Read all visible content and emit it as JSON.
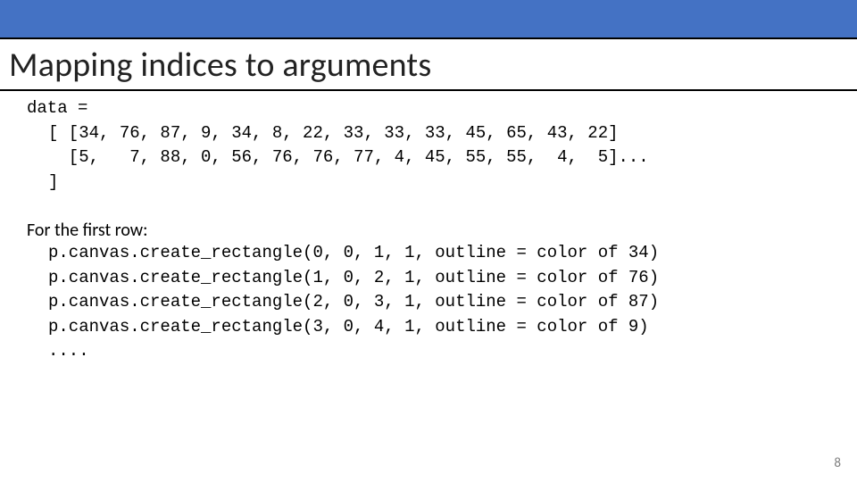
{
  "colors": {
    "accent": "#4472c4",
    "rule": "#000000",
    "text": "#000000",
    "slideNum": "#808080",
    "background": "#ffffff"
  },
  "typography": {
    "title_fontsize": 38,
    "mono_fontsize": 19,
    "mono_family": "Courier New",
    "prose_fontsize": 20
  },
  "title": "Mapping indices to arguments",
  "code": {
    "header": "data =",
    "row1": "[ [34, 76, 87, 9, 34, 8, 22, 33, 33, 33, 45, 65, 43, 22]",
    "row2": "  [5,   7, 88, 0, 56, 76, 76, 77, 4, 45, 55, 55,  4,  5]...",
    "close": "]"
  },
  "prose": {
    "lead": "For the first row:",
    "lines": [
      "p.canvas.create_rectangle(0, 0, 1, 1, outline = color of 34)",
      "p.canvas.create_rectangle(1, 0, 2, 1, outline = color of 76)",
      "p.canvas.create_rectangle(2, 0, 3, 1, outline = color of 87)",
      "p.canvas.create_rectangle(3, 0, 4, 1, outline = color of 9)"
    ],
    "ellipsis": "...."
  },
  "slide_number": "8"
}
